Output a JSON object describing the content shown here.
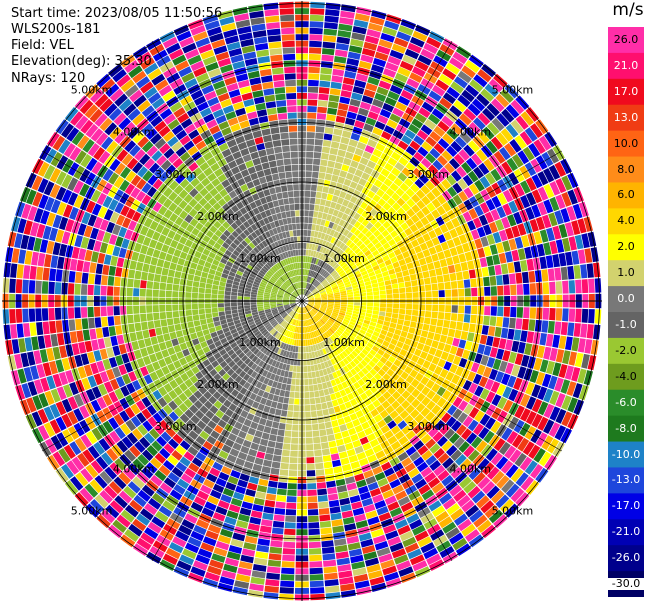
{
  "header": {
    "start_time": "Start time: 2023/08/05 11:50:56",
    "instrument": "WLS200s-181",
    "field": "Field: VEL",
    "elevation": "Elevation(deg): 35.30",
    "nrays": "NRays: 120"
  },
  "chart_data": {
    "type": "ppi",
    "field": "VEL",
    "unit": "m/s",
    "elevation_deg": 35.3,
    "nrays": 120,
    "range_rings": [
      "1.00km",
      "2.00km",
      "3.00km",
      "4.00km",
      "5.00km"
    ],
    "colorbar": {
      "unit": "m/s",
      "ticks": [
        "26.0",
        "21.0",
        "17.0",
        "13.0",
        "10.0",
        "8.0",
        "6.0",
        "4.0",
        "2.0",
        "1.0",
        "0.0",
        "-1.0",
        "-2.0",
        "-4.0",
        "-6.0",
        "-8.0",
        "-10.0",
        "-13.0",
        "-17.0",
        "-21.0",
        "-26.0",
        "-30.0"
      ],
      "colors": [
        "#ff2ea8",
        "#ff0f6e",
        "#f00a1e",
        "#f03c14",
        "#ff6414",
        "#ff8c19",
        "#ffb400",
        "#ffd700",
        "#ffff00",
        "#d2d26e",
        "#787878",
        "#646464",
        "#9ac832",
        "#6e9c1e",
        "#2a8c2a",
        "#1e7a1e",
        "#1e82c8",
        "#1e46dc",
        "#0000e6",
        "#0000b4",
        "#00008c",
        "#000064"
      ]
    },
    "velocity_field": {
      "description_free": true,
      "center_value": 0.0
    }
  }
}
